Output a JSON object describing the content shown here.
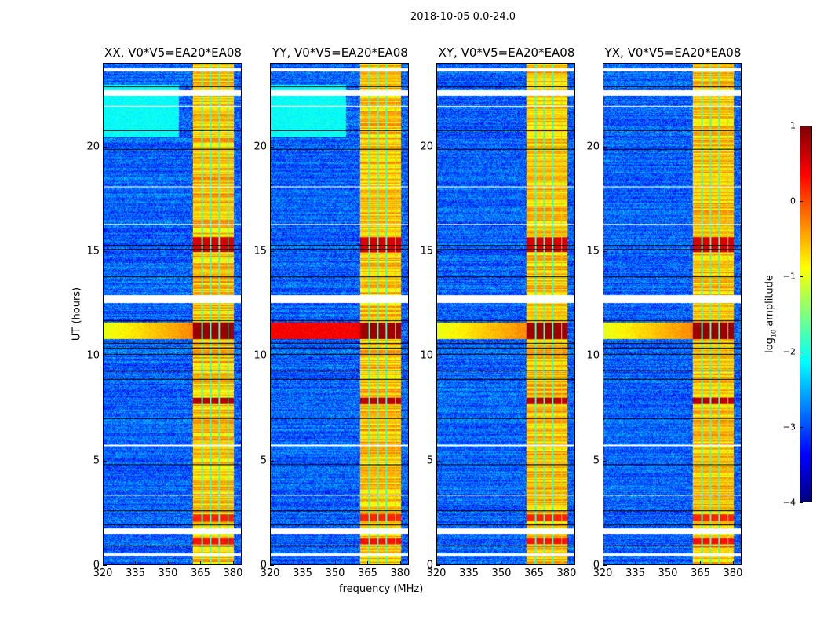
{
  "chart_data": {
    "type": "heatmap",
    "suptitle": "2018-10-05 0.0-24.0",
    "xlabel": "frequency (MHz)",
    "ylabel": "UT (hours)",
    "xlim": [
      320,
      384
    ],
    "ylim": [
      0,
      24
    ],
    "xticks": [
      "320",
      "335",
      "350",
      "365",
      "380"
    ],
    "xtick_values": [
      320,
      335,
      350,
      365,
      380
    ],
    "yticks": [
      "0",
      "5",
      "10",
      "15",
      "20"
    ],
    "ytick_values": [
      0,
      5,
      10,
      15,
      20
    ],
    "panels": [
      {
        "title": "XX, V0*V5=EA20*EA08",
        "low_band_excess_hours": [
          20.5,
          23.0
        ],
        "full_width_flare": false
      },
      {
        "title": "YY, V0*V5=EA20*EA08",
        "low_band_excess_hours": [
          20.5,
          23.0
        ],
        "full_width_flare": true
      },
      {
        "title": "XY, V0*V5=EA20*EA08",
        "low_band_excess_hours": null,
        "full_width_flare": false
      },
      {
        "title": "YX, V0*V5=EA20*EA08",
        "low_band_excess_hours": null,
        "full_width_flare": false
      }
    ],
    "background_log10": -2.9,
    "rfi_subbands_mhz": [
      [
        361.5,
        365.5
      ],
      [
        366,
        369.5
      ],
      [
        370,
        373.5
      ],
      [
        374,
        377.5
      ],
      [
        378,
        380.5
      ]
    ],
    "rfi_level_log10": -0.6,
    "bright_hour_ranges": [
      {
        "range": [
          10.8,
          11.6
        ],
        "log10": 0.85
      },
      {
        "range": [
          15.0,
          15.7
        ],
        "log10": 0.55
      },
      {
        "range": [
          7.7,
          8.0
        ],
        "log10": 0.7
      },
      {
        "range": [
          2.1,
          2.4
        ],
        "log10": 0.2
      },
      {
        "range": [
          1.0,
          1.3
        ],
        "log10": 0.3
      }
    ],
    "flagged_hours": [
      [
        0.45,
        0.55
      ],
      [
        1.5,
        1.75
      ],
      [
        12.55,
        12.9
      ],
      [
        22.5,
        22.75
      ],
      [
        23.65,
        23.8
      ],
      [
        5.7,
        5.75
      ],
      [
        3.3,
        3.35
      ],
      [
        16.3,
        16.35
      ],
      [
        18.1,
        18.15
      ],
      [
        21.95,
        22.0
      ]
    ],
    "black_line_hours": [
      0.9,
      1.9,
      2.6,
      4.8,
      7.0,
      8.9,
      9.3,
      10.1,
      10.4,
      10.6,
      11.7,
      13.8,
      15.1,
      15.3,
      19.9,
      20.8,
      22.9
    ],
    "colorbar": {
      "label_prefix": "log",
      "label_sub": "10",
      "label_suffix": " amplitude",
      "range": [
        -4,
        1
      ],
      "ticks": [
        "1",
        "0",
        "−1",
        "−2",
        "−3",
        "−4"
      ],
      "tick_values": [
        1,
        0,
        -1,
        -2,
        -3,
        -4
      ],
      "colormap": "jet"
    }
  }
}
